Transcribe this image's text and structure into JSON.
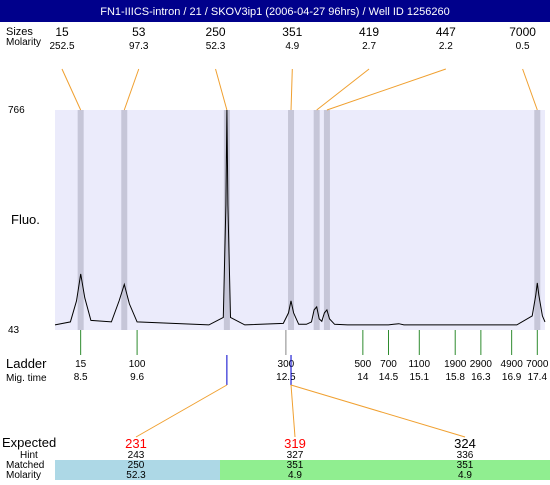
{
  "header": {
    "title": "FN1-IIICS-intron / 21 / SKOV3ip1 (2006-04-27 96hrs) / Well ID 1256260",
    "row_label_sizes": "Sizes",
    "row_label_molarity": "Molarity"
  },
  "peaks": [
    {
      "size": "15",
      "molarity": "252.5",
      "mig": 8.5
    },
    {
      "size": "53",
      "molarity": "97.3",
      "mig": 9.35
    },
    {
      "size": "250",
      "molarity": "52.3",
      "mig": 11.35
    },
    {
      "size": "351",
      "molarity": "4.9",
      "mig": 12.6
    },
    {
      "size": "419",
      "molarity": "2.7",
      "mig": 13.1
    },
    {
      "size": "447",
      "molarity": "2.2",
      "mig": 13.3
    },
    {
      "size": "7000",
      "molarity": "0.5",
      "mig": 17.4
    }
  ],
  "plot": {
    "y_label": "Fluo.",
    "y_max_label": "766",
    "y_min_label": "43",
    "colors": {
      "background": "#ebebfb",
      "band": "#c6c6d8",
      "trace": "#000000",
      "leader": "#f0a030"
    }
  },
  "ladder": {
    "label": "Ladder",
    "mig_label": "Mig. time",
    "marks": [
      {
        "size": "15",
        "time": "8.5",
        "mig": 8.5
      },
      {
        "size": "100",
        "time": "9.6",
        "mig": 9.6
      },
      {
        "size": "300",
        "time": "12.5",
        "mig": 12.5
      },
      {
        "size": "500",
        "time": "14",
        "mig": 14.0
      },
      {
        "size": "700",
        "time": "14.5",
        "mig": 14.5
      },
      {
        "size": "1100",
        "time": "15.1",
        "mig": 15.1
      },
      {
        "size": "1900",
        "time": "15.8",
        "mig": 15.8
      },
      {
        "size": "2900",
        "time": "16.3",
        "mig": 16.3
      },
      {
        "size": "4900",
        "time": "16.9",
        "mig": 16.9
      },
      {
        "size": "7000",
        "time": "17.4",
        "mig": 17.4
      }
    ]
  },
  "expected": {
    "label_expected": "Expected",
    "label_hint": "Hint",
    "label_matched": "Matched",
    "label_molarity": "Molarity",
    "columns": [
      {
        "expected": "231",
        "expected_color": "#ff0000",
        "hint": "243",
        "matched": "250",
        "molarity": "52.3",
        "band_color": "#add8e6",
        "mig": 11.35
      },
      {
        "expected": "319",
        "expected_color": "#ff0000",
        "hint": "327",
        "matched": "351",
        "molarity": "4.9",
        "band_color": "#90ee90",
        "mig": 12.6
      },
      {
        "expected": "324",
        "expected_color": "#000000",
        "hint": "336",
        "matched": "351",
        "molarity": "4.9",
        "band_color": "#90ee90",
        "mig": 12.6
      }
    ]
  },
  "chart_data": {
    "type": "line",
    "title": "FN1-IIICS-intron / 21 / SKOV3ip1 (2006-04-27 96hrs) / Well ID 1256260",
    "ylabel": "Fluo.",
    "xlabel": "Mig. time",
    "ylim": [
      43,
      766
    ],
    "xlim": [
      8.0,
      17.55
    ],
    "series": [
      {
        "x": [
          8.0,
          8.3,
          8.42,
          8.5,
          8.58,
          8.7,
          9.1,
          9.25,
          9.35,
          9.45,
          9.6,
          11.0,
          11.28,
          11.33,
          11.35,
          11.37,
          11.42,
          11.7,
          12.45,
          12.55,
          12.6,
          12.65,
          12.75,
          12.9,
          13.0,
          13.05,
          13.1,
          13.15,
          13.2,
          13.25,
          13.3,
          13.35,
          13.45,
          13.7,
          14.5,
          14.6,
          14.7,
          14.8,
          15.5,
          17.0,
          17.3,
          17.37,
          17.4,
          17.43,
          17.5,
          17.55
        ],
        "y": [
          50,
          60,
          130,
          220,
          140,
          65,
          60,
          130,
          185,
          120,
          60,
          50,
          75,
          450,
          766,
          450,
          75,
          50,
          55,
          90,
          130,
          90,
          52,
          52,
          60,
          100,
          110,
          70,
          62,
          90,
          100,
          70,
          52,
          50,
          50,
          52,
          54,
          50,
          50,
          50,
          80,
          150,
          190,
          150,
          80,
          60
        ]
      }
    ],
    "peaks": [
      {
        "size": 15,
        "molarity": 252.5,
        "mig": 8.5
      },
      {
        "size": 53,
        "molarity": 97.3,
        "mig": 9.35
      },
      {
        "size": 250,
        "molarity": 52.3,
        "mig": 11.35
      },
      {
        "size": 351,
        "molarity": 4.9,
        "mig": 12.6
      },
      {
        "size": 419,
        "molarity": 2.7,
        "mig": 13.1
      },
      {
        "size": 447,
        "molarity": 2.2,
        "mig": 13.3
      },
      {
        "size": 7000,
        "molarity": 0.5,
        "mig": 17.4
      }
    ],
    "ladder": [
      {
        "size": 15,
        "mig": 8.5
      },
      {
        "size": 100,
        "mig": 9.6
      },
      {
        "size": 300,
        "mig": 12.5
      },
      {
        "size": 500,
        "mig": 14.0
      },
      {
        "size": 700,
        "mig": 14.5
      },
      {
        "size": 1100,
        "mig": 15.1
      },
      {
        "size": 1900,
        "mig": 15.8
      },
      {
        "size": 2900,
        "mig": 16.3
      },
      {
        "size": 4900,
        "mig": 16.9
      },
      {
        "size": 7000,
        "mig": 17.4
      }
    ],
    "expected": [
      {
        "expected": 231,
        "hint": 243,
        "matched": 250,
        "molarity": 52.3
      },
      {
        "expected": 319,
        "hint": 327,
        "matched": 351,
        "molarity": 4.9
      },
      {
        "expected": 324,
        "hint": 336,
        "matched": 351,
        "molarity": 4.9
      }
    ]
  }
}
